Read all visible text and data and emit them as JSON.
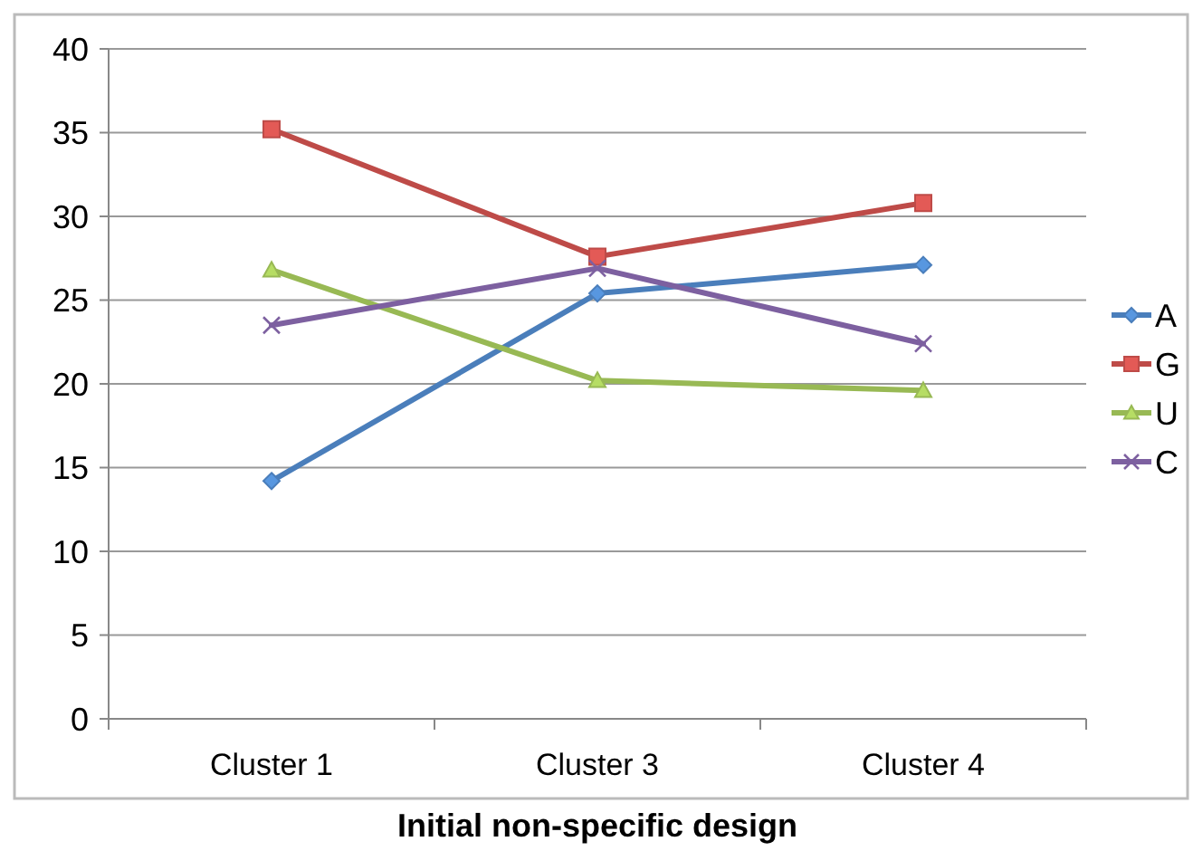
{
  "chart_data": {
    "type": "line",
    "xlabel": "Initial non-specific design",
    "categories": [
      "Cluster 1",
      "Cluster 3",
      "Cluster 4"
    ],
    "series": [
      {
        "name": "A",
        "color": "#4a7ebb",
        "values": [
          14.2,
          25.4,
          27.1
        ],
        "marker": "diamond"
      },
      {
        "name": "G",
        "color": "#be4b48",
        "values": [
          35.2,
          27.6,
          30.8
        ],
        "marker": "square"
      },
      {
        "name": "U",
        "color": "#98b954",
        "values": [
          26.8,
          20.2,
          19.6
        ],
        "marker": "triangle"
      },
      {
        "name": "C",
        "color": "#7d60a0",
        "values": [
          23.5,
          26.9,
          22.4
        ],
        "marker": "cross"
      }
    ],
    "ylim": [
      0,
      40
    ],
    "yticks": [
      0,
      5,
      10,
      15,
      20,
      25,
      30,
      35,
      40
    ],
    "grid": "y",
    "legend": "right"
  }
}
